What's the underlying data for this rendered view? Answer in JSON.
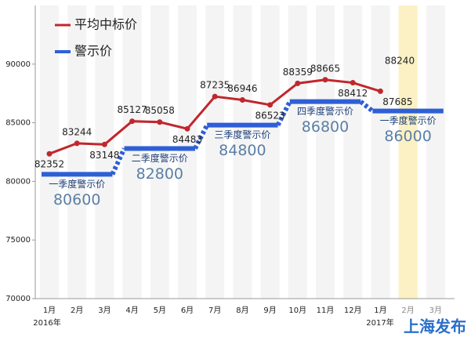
{
  "chart_data": {
    "type": "line",
    "categories": [
      "1月",
      "2月",
      "3月",
      "4月",
      "5月",
      "6月",
      "7月",
      "8月",
      "9月",
      "10月",
      "11月",
      "12月",
      "1月",
      "2月",
      "3月"
    ],
    "year_labels": [
      "2016年",
      "2017年"
    ],
    "series": [
      {
        "name": "平均中标价",
        "color": "#c0272d",
        "values": [
          82352,
          83244,
          83148,
          85127,
          85058,
          84483,
          87235,
          86946,
          86523,
          88359,
          88665,
          88412,
          87685,
          null,
          null
        ]
      },
      {
        "name": "警示价",
        "color": "#2e5fd6"
      }
    ],
    "quarters": [
      {
        "label": "一季度警示价",
        "value": 80600
      },
      {
        "label": "二季度警示价",
        "value": 82800
      },
      {
        "label": "三季度警示价",
        "value": 84800
      },
      {
        "label": "四季度警示价",
        "value": 86800
      },
      {
        "label": "一季度警示价",
        "value": 86000
      }
    ],
    "annotation": "88240",
    "watermark": "上海发布",
    "ylim": [
      70000,
      95000
    ],
    "yticks": [
      70000,
      75000,
      80000,
      85000,
      90000
    ]
  }
}
